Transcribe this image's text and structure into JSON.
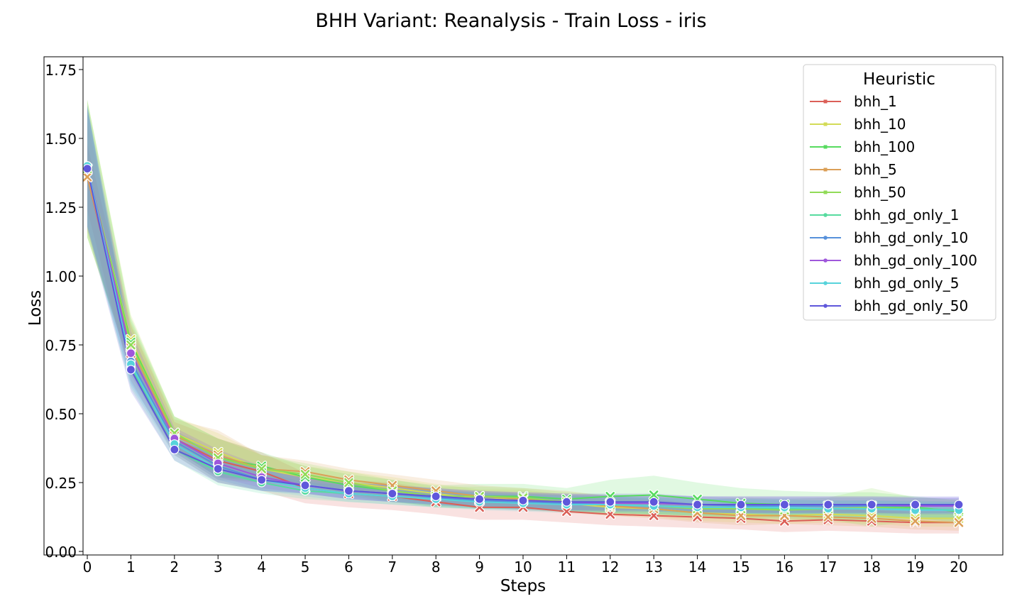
{
  "chart_data": {
    "type": "line",
    "title": "BHH Variant: Reanalysis - Train Loss - iris",
    "xlabel": "Steps",
    "ylabel": "Loss",
    "xlim": [
      0,
      20
    ],
    "ylim": [
      0,
      1.8
    ],
    "x_ticks": [
      "0",
      "1",
      "2",
      "3",
      "4",
      "5",
      "6",
      "7",
      "8",
      "9",
      "10",
      "11",
      "12",
      "13",
      "14",
      "15",
      "16",
      "17",
      "18",
      "19",
      "20"
    ],
    "y_ticks": [
      "0.00",
      "0.25",
      "0.50",
      "0.75",
      "1.00",
      "1.25",
      "1.50",
      "1.75"
    ],
    "y_tick_values": [
      0,
      0.25,
      0.5,
      0.75,
      1.0,
      1.25,
      1.5,
      1.75
    ],
    "grid": false,
    "legend": {
      "title": "Heuristic",
      "placement": "top-right"
    },
    "x": [
      0,
      1,
      2,
      3,
      4,
      5,
      6,
      7,
      8,
      9,
      10,
      11,
      12,
      13,
      14,
      15,
      16,
      17,
      18,
      19,
      20
    ],
    "series": [
      {
        "name": "bhh_1",
        "color": "#db5f57",
        "marker": "x",
        "values": [
          1.36,
          0.72,
          0.41,
          0.33,
          0.29,
          0.23,
          0.21,
          0.2,
          0.18,
          0.16,
          0.16,
          0.145,
          0.135,
          0.13,
          0.125,
          0.12,
          0.11,
          0.115,
          0.11,
          0.105,
          0.105
        ],
        "band": [
          0.12,
          0.1,
          0.06,
          0.08,
          0.07,
          0.055,
          0.05,
          0.05,
          0.045,
          0.045,
          0.045,
          0.04,
          0.04,
          0.04,
          0.04,
          0.04,
          0.04,
          0.04,
          0.04,
          0.04,
          0.04
        ]
      },
      {
        "name": "bhh_10",
        "color": "#d3db57",
        "marker": "x",
        "values": [
          1.39,
          0.77,
          0.43,
          0.36,
          0.3,
          0.27,
          0.25,
          0.23,
          0.21,
          0.19,
          0.19,
          0.175,
          0.16,
          0.155,
          0.14,
          0.135,
          0.13,
          0.135,
          0.13,
          0.12,
          0.12
        ],
        "band": [
          0.25,
          0.09,
          0.06,
          0.07,
          0.05,
          0.04,
          0.04,
          0.04,
          0.035,
          0.035,
          0.035,
          0.03,
          0.03,
          0.03,
          0.03,
          0.03,
          0.03,
          0.03,
          0.03,
          0.03,
          0.03
        ]
      },
      {
        "name": "bhh_100",
        "color": "#57db5f",
        "marker": "x",
        "values": [
          1.39,
          0.76,
          0.43,
          0.34,
          0.31,
          0.27,
          0.24,
          0.22,
          0.2,
          0.2,
          0.2,
          0.19,
          0.2,
          0.205,
          0.19,
          0.175,
          0.17,
          0.165,
          0.165,
          0.16,
          0.145
        ],
        "band": [
          0.25,
          0.09,
          0.06,
          0.07,
          0.05,
          0.04,
          0.04,
          0.04,
          0.04,
          0.045,
          0.045,
          0.04,
          0.06,
          0.07,
          0.06,
          0.055,
          0.05,
          0.05,
          0.05,
          0.04,
          0.04
        ]
      },
      {
        "name": "bhh_5",
        "color": "#db9f57",
        "marker": "x",
        "values": [
          1.36,
          0.74,
          0.42,
          0.35,
          0.3,
          0.29,
          0.26,
          0.24,
          0.22,
          0.2,
          0.19,
          0.18,
          0.165,
          0.155,
          0.14,
          0.13,
          0.13,
          0.125,
          0.12,
          0.11,
          0.105
        ],
        "band": [
          0.2,
          0.09,
          0.06,
          0.09,
          0.05,
          0.04,
          0.04,
          0.04,
          0.04,
          0.04,
          0.04,
          0.04,
          0.035,
          0.035,
          0.035,
          0.035,
          0.03,
          0.03,
          0.03,
          0.03,
          0.03
        ]
      },
      {
        "name": "bhh_50",
        "color": "#91db57",
        "marker": "x",
        "values": [
          1.39,
          0.75,
          0.43,
          0.34,
          0.3,
          0.28,
          0.25,
          0.22,
          0.2,
          0.2,
          0.195,
          0.18,
          0.17,
          0.165,
          0.155,
          0.155,
          0.15,
          0.155,
          0.16,
          0.155,
          0.15
        ],
        "band": [
          0.25,
          0.09,
          0.06,
          0.07,
          0.05,
          0.04,
          0.04,
          0.04,
          0.035,
          0.035,
          0.035,
          0.035,
          0.035,
          0.035,
          0.035,
          0.04,
          0.04,
          0.04,
          0.07,
          0.04,
          0.04
        ]
      },
      {
        "name": "bhh_gd_only_1",
        "color": "#57db9f",
        "marker": "o",
        "values": [
          1.4,
          0.67,
          0.37,
          0.29,
          0.25,
          0.22,
          0.21,
          0.2,
          0.19,
          0.185,
          0.18,
          0.175,
          0.17,
          0.165,
          0.16,
          0.16,
          0.155,
          0.155,
          0.155,
          0.155,
          0.15
        ],
        "band": [
          0.22,
          0.08,
          0.04,
          0.05,
          0.04,
          0.03,
          0.03,
          0.03,
          0.03,
          0.03,
          0.03,
          0.03,
          0.03,
          0.03,
          0.03,
          0.03,
          0.03,
          0.03,
          0.03,
          0.03,
          0.03
        ]
      },
      {
        "name": "bhh_gd_only_10",
        "color": "#5791db",
        "marker": "o",
        "values": [
          1.4,
          0.69,
          0.4,
          0.31,
          0.26,
          0.24,
          0.22,
          0.21,
          0.195,
          0.185,
          0.18,
          0.175,
          0.175,
          0.175,
          0.17,
          0.165,
          0.165,
          0.165,
          0.165,
          0.165,
          0.165
        ],
        "band": [
          0.22,
          0.08,
          0.04,
          0.05,
          0.04,
          0.03,
          0.03,
          0.03,
          0.03,
          0.03,
          0.03,
          0.03,
          0.03,
          0.03,
          0.03,
          0.03,
          0.03,
          0.03,
          0.03,
          0.03,
          0.03
        ]
      },
      {
        "name": "bhh_gd_only_100",
        "color": "#9f57db",
        "marker": "o",
        "values": [
          1.4,
          0.72,
          0.41,
          0.32,
          0.27,
          0.24,
          0.22,
          0.21,
          0.2,
          0.19,
          0.185,
          0.18,
          0.175,
          0.175,
          0.17,
          0.17,
          0.17,
          0.17,
          0.17,
          0.165,
          0.165
        ],
        "band": [
          0.22,
          0.08,
          0.04,
          0.05,
          0.04,
          0.03,
          0.03,
          0.03,
          0.03,
          0.03,
          0.03,
          0.03,
          0.03,
          0.03,
          0.03,
          0.03,
          0.03,
          0.03,
          0.03,
          0.03,
          0.03
        ]
      },
      {
        "name": "bhh_gd_only_5",
        "color": "#57d3db",
        "marker": "o",
        "values": [
          1.4,
          0.68,
          0.39,
          0.3,
          0.26,
          0.23,
          0.21,
          0.2,
          0.19,
          0.18,
          0.175,
          0.17,
          0.17,
          0.165,
          0.16,
          0.16,
          0.16,
          0.155,
          0.155,
          0.15,
          0.15
        ],
        "band": [
          0.22,
          0.08,
          0.04,
          0.05,
          0.04,
          0.03,
          0.03,
          0.03,
          0.03,
          0.03,
          0.03,
          0.03,
          0.03,
          0.03,
          0.03,
          0.03,
          0.03,
          0.03,
          0.03,
          0.03,
          0.03
        ]
      },
      {
        "name": "bhh_gd_only_50",
        "color": "#5f57db",
        "marker": "o",
        "values": [
          1.39,
          0.66,
          0.37,
          0.3,
          0.26,
          0.24,
          0.22,
          0.21,
          0.2,
          0.19,
          0.185,
          0.18,
          0.18,
          0.18,
          0.17,
          0.17,
          0.17,
          0.17,
          0.17,
          0.17,
          0.17
        ],
        "band": [
          0.22,
          0.08,
          0.04,
          0.05,
          0.04,
          0.03,
          0.03,
          0.03,
          0.03,
          0.03,
          0.03,
          0.03,
          0.03,
          0.03,
          0.03,
          0.03,
          0.03,
          0.03,
          0.03,
          0.03,
          0.03
        ]
      }
    ]
  }
}
